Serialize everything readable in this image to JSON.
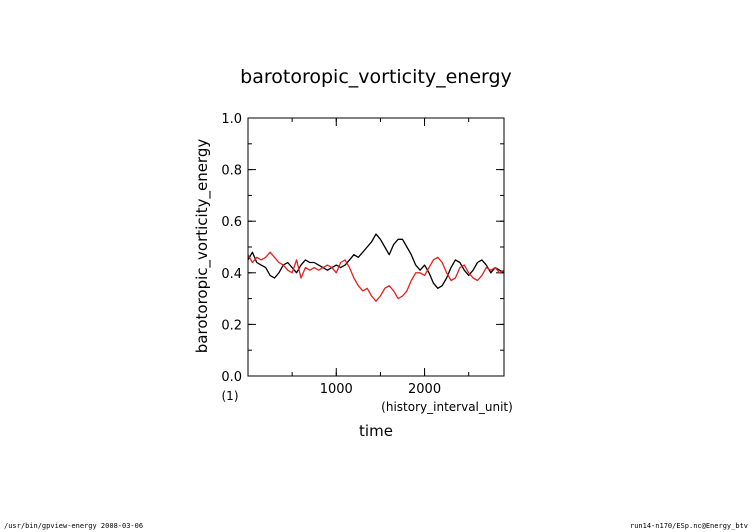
{
  "chart_data": {
    "type": "line",
    "title": "barotoropic_vorticity_energy",
    "ylabel": "barotoropic_vorticity_energy",
    "y_unit": "(1)",
    "xlabel": "time",
    "x_unit": "(history_interval_unit)",
    "xlim": [
      0,
      2900
    ],
    "ylim": [
      0.0,
      1.0
    ],
    "x_ticks": [
      1000,
      2000
    ],
    "y_ticks": [
      0.0,
      0.2,
      0.4,
      0.6,
      0.8,
      1.0
    ],
    "grid": false,
    "series": [
      {
        "color": "#000000",
        "x": [
          0,
          50,
          100,
          150,
          200,
          250,
          300,
          350,
          400,
          450,
          500,
          550,
          600,
          650,
          700,
          750,
          800,
          850,
          900,
          950,
          1000,
          1050,
          1100,
          1150,
          1200,
          1250,
          1300,
          1350,
          1400,
          1450,
          1500,
          1550,
          1600,
          1650,
          1700,
          1750,
          1800,
          1850,
          1900,
          1950,
          2000,
          2050,
          2100,
          2150,
          2200,
          2250,
          2300,
          2350,
          2400,
          2450,
          2500,
          2550,
          2600,
          2650,
          2700,
          2750,
          2800,
          2850,
          2900
        ],
        "values": [
          0.45,
          0.48,
          0.44,
          0.43,
          0.42,
          0.39,
          0.38,
          0.4,
          0.43,
          0.44,
          0.42,
          0.4,
          0.43,
          0.45,
          0.44,
          0.44,
          0.43,
          0.42,
          0.41,
          0.42,
          0.43,
          0.42,
          0.43,
          0.45,
          0.47,
          0.46,
          0.48,
          0.5,
          0.52,
          0.55,
          0.53,
          0.5,
          0.47,
          0.51,
          0.53,
          0.53,
          0.5,
          0.47,
          0.43,
          0.41,
          0.43,
          0.4,
          0.36,
          0.34,
          0.35,
          0.38,
          0.42,
          0.45,
          0.44,
          0.41,
          0.39,
          0.41,
          0.44,
          0.45,
          0.43,
          0.4,
          0.42,
          0.41,
          0.4
        ]
      },
      {
        "color": "#e8201c",
        "x": [
          0,
          50,
          100,
          150,
          200,
          250,
          300,
          350,
          400,
          450,
          500,
          550,
          600,
          650,
          700,
          750,
          800,
          850,
          900,
          950,
          1000,
          1050,
          1100,
          1150,
          1200,
          1250,
          1300,
          1350,
          1400,
          1450,
          1500,
          1550,
          1600,
          1650,
          1700,
          1750,
          1800,
          1850,
          1900,
          1950,
          2000,
          2050,
          2100,
          2150,
          2200,
          2250,
          2300,
          2350,
          2400,
          2450,
          2500,
          2550,
          2600,
          2650,
          2700,
          2750,
          2800,
          2850,
          2900
        ],
        "values": [
          0.47,
          0.44,
          0.46,
          0.45,
          0.46,
          0.48,
          0.46,
          0.44,
          0.43,
          0.41,
          0.4,
          0.45,
          0.38,
          0.42,
          0.41,
          0.42,
          0.41,
          0.42,
          0.43,
          0.42,
          0.4,
          0.44,
          0.45,
          0.42,
          0.38,
          0.35,
          0.33,
          0.34,
          0.31,
          0.29,
          0.31,
          0.34,
          0.35,
          0.33,
          0.3,
          0.31,
          0.33,
          0.37,
          0.4,
          0.4,
          0.39,
          0.42,
          0.45,
          0.46,
          0.44,
          0.4,
          0.37,
          0.38,
          0.42,
          0.43,
          0.4,
          0.38,
          0.37,
          0.39,
          0.42,
          0.41,
          0.42,
          0.4,
          0.41
        ]
      }
    ]
  },
  "footer": {
    "left": "/usr/bin/gpview-energy  2008-03-06",
    "right": "run14-n170/ESp.nc@Energy_btv"
  }
}
